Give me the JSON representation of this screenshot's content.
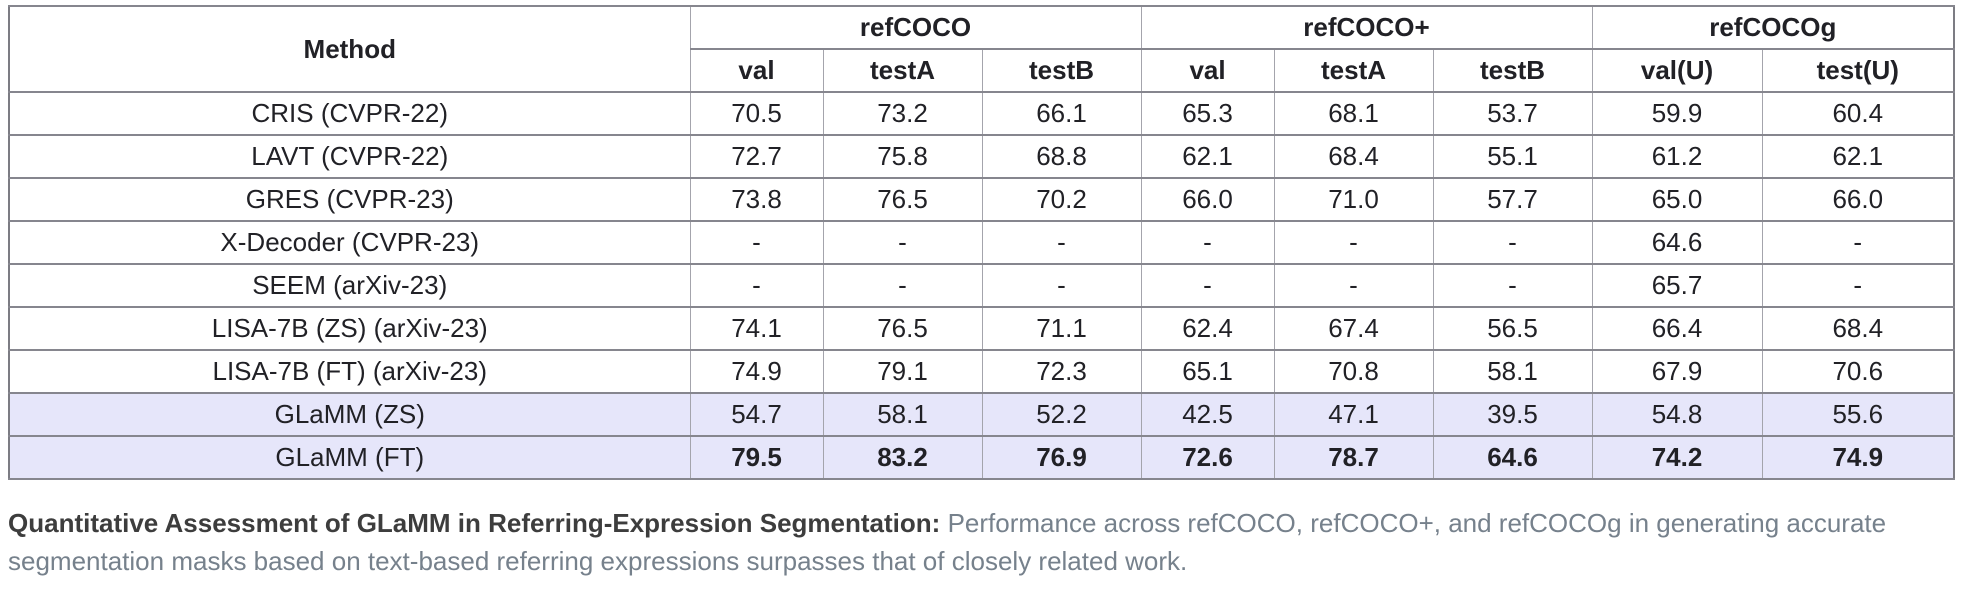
{
  "table": {
    "method_header": "Method",
    "groups": [
      {
        "label": "refCOCO",
        "subcolumns": [
          "val",
          "testA",
          "testB"
        ]
      },
      {
        "label": "refCOCO+",
        "subcolumns": [
          "val",
          "testA",
          "testB"
        ]
      },
      {
        "label": "refCOCOg",
        "subcolumns": [
          "val(U)",
          "test(U)"
        ]
      }
    ],
    "rows": [
      {
        "method": "CRIS (CVPR-22)",
        "values": [
          "70.5",
          "73.2",
          "66.1",
          "65.3",
          "68.1",
          "53.7",
          "59.9",
          "60.4"
        ],
        "highlighted": false,
        "bold_values": false
      },
      {
        "method": "LAVT (CVPR-22)",
        "values": [
          "72.7",
          "75.8",
          "68.8",
          "62.1",
          "68.4",
          "55.1",
          "61.2",
          "62.1"
        ],
        "highlighted": false,
        "bold_values": false
      },
      {
        "method": "GRES (CVPR-23)",
        "values": [
          "73.8",
          "76.5",
          "70.2",
          "66.0",
          "71.0",
          "57.7",
          "65.0",
          "66.0"
        ],
        "highlighted": false,
        "bold_values": false
      },
      {
        "method": "X-Decoder (CVPR-23)",
        "values": [
          "-",
          "-",
          "-",
          "-",
          "-",
          "-",
          "64.6",
          "-"
        ],
        "highlighted": false,
        "bold_values": false
      },
      {
        "method": "SEEM (arXiv-23)",
        "values": [
          "-",
          "-",
          "-",
          "-",
          "-",
          "-",
          "65.7",
          "-"
        ],
        "highlighted": false,
        "bold_values": false
      },
      {
        "method": "LISA-7B (ZS) (arXiv-23)",
        "values": [
          "74.1",
          "76.5",
          "71.1",
          "62.4",
          "67.4",
          "56.5",
          "66.4",
          "68.4"
        ],
        "highlighted": false,
        "bold_values": false
      },
      {
        "method": "LISA-7B (FT) (arXiv-23)",
        "values": [
          "74.9",
          "79.1",
          "72.3",
          "65.1",
          "70.8",
          "58.1",
          "67.9",
          "70.6"
        ],
        "highlighted": false,
        "bold_values": false
      },
      {
        "method": "GLaMM (ZS)",
        "values": [
          "54.7",
          "58.1",
          "52.2",
          "42.5",
          "47.1",
          "39.5",
          "54.8",
          "55.6"
        ],
        "highlighted": true,
        "bold_values": false
      },
      {
        "method": "GLaMM (FT)",
        "values": [
          "79.5",
          "83.2",
          "76.9",
          "72.6",
          "78.7",
          "64.6",
          "74.2",
          "74.9"
        ],
        "highlighted": true,
        "bold_values": true
      }
    ]
  },
  "caption": {
    "title": "Quantitative Assessment of GLaMM in Referring-Expression Segmentation",
    "separator": ":",
    "body": " Performance across refCOCO, refCOCO+, and refCOCOg in generating accurate segmentation masks based on text-based referring expressions surpasses that of closely related work."
  },
  "colors": {
    "highlight_row": "#e6e6fa",
    "table_text": "#212126",
    "caption_title": "#3d3d3d",
    "caption_body": "#76818c",
    "border_outer": "#7c7c83",
    "border_horizontal": "#86868e",
    "border_vertical": "#a4a4ac"
  }
}
